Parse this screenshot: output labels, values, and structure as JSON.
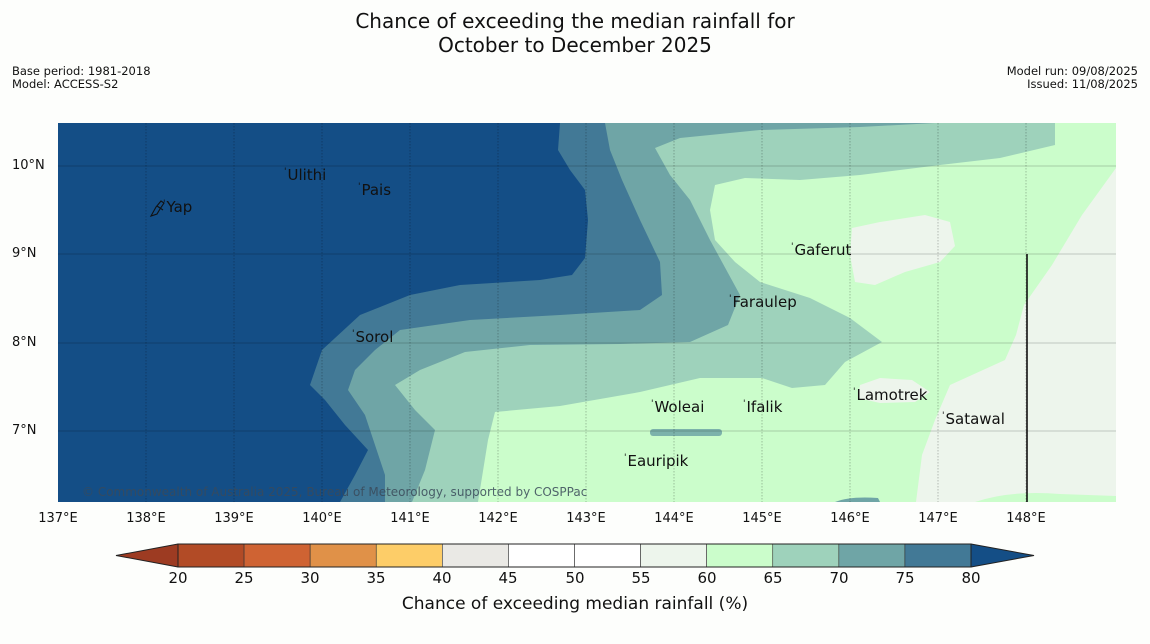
{
  "title": {
    "line1": "Chance of exceeding the median rainfall for",
    "line2": "October to December 2025"
  },
  "meta_left": {
    "base_period": "Base period: 1981-2018",
    "model": "Model: ACCESS-S2"
  },
  "meta_right": {
    "model_run": "Model run: 09/08/2025",
    "issued": "Issued: 11/08/2025"
  },
  "latitude_labels": [
    "10°N",
    "9°N",
    "8°N",
    "7°N"
  ],
  "longitude_labels": [
    "137°E",
    "138°E",
    "139°E",
    "140°E",
    "141°E",
    "142°E",
    "143°E",
    "144°E",
    "145°E",
    "146°E",
    "147°E",
    "148°E"
  ],
  "places": {
    "yap": "Yap",
    "ulithi": "Ulithi",
    "pais": "Pais",
    "sorol": "Sorol",
    "gaferut": "Gaferut",
    "faraulep": "Faraulep",
    "woleai": "Woleai",
    "ifalik": "Ifalik",
    "lamotrek": "Lamotrek",
    "satawal": "Satawal",
    "eauripik": "Eauripik"
  },
  "copyright": "© Commonwealth of Australia 2025, Bureau of Meteorology, supported by COSPPac",
  "colorbar": {
    "label": "Chance of exceeding median rainfall (%)",
    "ticks": [
      "20",
      "25",
      "30",
      "35",
      "40",
      "45",
      "50",
      "55",
      "60",
      "65",
      "70",
      "75",
      "80"
    ],
    "colors": [
      "#9d3b22",
      "#b24b26",
      "#cf6333",
      "#e09148",
      "#fdcd68",
      "#eae9e5",
      "#ffffff",
      "#ffffff",
      "#edf5ec",
      "#cbfdcb",
      "#9ed2bb",
      "#6fa5a6",
      "#427996",
      "#144e86"
    ]
  }
}
